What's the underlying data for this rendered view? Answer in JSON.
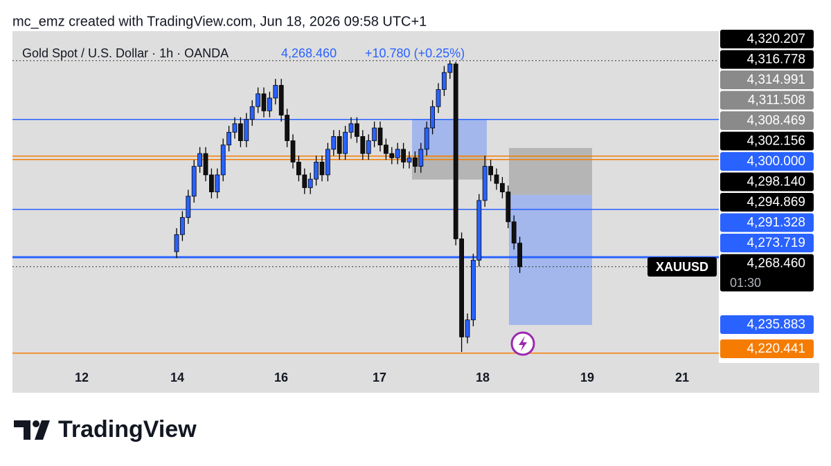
{
  "header": "mc_emz created with TradingView.com, Jun 18, 2026 09:58 UTC+1",
  "footer_logo": "TradingView",
  "chart_data": {
    "type": "candlestick",
    "title": "Gold Spot / U.S. Dollar · 1h · OANDA",
    "last_price": "4,268.460",
    "change": "+10.780 (+0.25%)",
    "symbol": "XAUUSD",
    "countdown": "01:30",
    "up_color": "#2962ff",
    "down_color": "#111111",
    "ylim": [
      4245.9,
      4323.7
    ],
    "x_labels": [
      "12",
      "14",
      "16",
      "17",
      "18",
      "19",
      "21"
    ],
    "open": [
      4272,
      4276,
      4280,
      4285,
      4292,
      4295,
      4290,
      4286,
      4290,
      4297,
      4300,
      4302,
      4298,
      4303,
      4306,
      4309,
      4305,
      4308,
      4311,
      4304,
      4298,
      4293,
      4290,
      4287,
      4289,
      4293,
      4290,
      4296,
      4299,
      4295,
      4300,
      4302,
      4299,
      4295,
      4298,
      4301,
      4297,
      4295,
      4294,
      4296,
      4293,
      4294,
      4292,
      4296,
      4301,
      4306,
      4310,
      4314,
      4316,
      4275,
      4252,
      4256,
      4270,
      4284,
      4292,
      4290,
      4288,
      4286,
      4279,
      4274
    ],
    "high": [
      4277.5,
      4281.5,
      4286.5,
      4293.5,
      4296.5,
      4296.5,
      4291.5,
      4291.5,
      4298.5,
      4301.5,
      4303.5,
      4303.5,
      4304.5,
      4307.5,
      4310.5,
      4310.5,
      4309.5,
      4312.5,
      4312.5,
      4305.5,
      4299.5,
      4294.5,
      4291.5,
      4290.5,
      4294.5,
      4294.5,
      4297.5,
      4300.5,
      4300.5,
      4301.5,
      4303.5,
      4303.5,
      4300.5,
      4299.5,
      4302.5,
      4302.5,
      4298.5,
      4296.5,
      4297.5,
      4297.5,
      4295.5,
      4295.5,
      4297.5,
      4302.5,
      4307.5,
      4311.5,
      4315.5,
      4316.8,
      4316.5,
      4276.5,
      4257.5,
      4271.5,
      4285.5,
      4294.5,
      4293.5,
      4291.5,
      4289.5,
      4287.5,
      4280.5,
      4275.5
    ],
    "low": [
      4270.5,
      4274.5,
      4278.5,
      4283.5,
      4290.5,
      4288.5,
      4284.5,
      4284.5,
      4288.5,
      4295.5,
      4298.5,
      4296.5,
      4296.5,
      4301.5,
      4304.5,
      4303.5,
      4303.5,
      4306.5,
      4302.5,
      4296.5,
      4291.5,
      4288.5,
      4285.5,
      4285.5,
      4287.5,
      4288.5,
      4288.5,
      4294.5,
      4293.5,
      4293.5,
      4298.5,
      4297.5,
      4293.5,
      4293.5,
      4296.5,
      4295.5,
      4293.5,
      4292.5,
      4292.5,
      4291.5,
      4291.5,
      4290.5,
      4290.5,
      4294.5,
      4299.5,
      4304.5,
      4308.5,
      4312.5,
      4273.5,
      4248.5,
      4250.5,
      4254.5,
      4268.5,
      4282.5,
      4288.5,
      4286.5,
      4284.5,
      4277.5,
      4272.5,
      4267
    ],
    "close": [
      4276,
      4280,
      4285,
      4292,
      4295,
      4290,
      4286,
      4290,
      4297,
      4300,
      4302,
      4298,
      4303,
      4306,
      4309,
      4305,
      4308,
      4311,
      4304,
      4298,
      4293,
      4290,
      4287,
      4289,
      4293,
      4290,
      4296,
      4299,
      4295,
      4300,
      4302,
      4299,
      4295,
      4298,
      4301,
      4297,
      4295,
      4294,
      4296,
      4293,
      4294,
      4292,
      4296,
      4301,
      4306,
      4310,
      4314,
      4316,
      4275,
      4252,
      4256,
      4270,
      4284,
      4292,
      4290,
      4288,
      4286,
      4279,
      4274,
      4268.46
    ],
    "levels": [
      {
        "value": 4303.0,
        "color": "#2962ff"
      },
      {
        "value": 4294.4,
        "color": "#f57c00"
      },
      {
        "value": 4293.6,
        "color": "#f57c00"
      },
      {
        "value": 4281.9,
        "color": "#2962ff"
      },
      {
        "value": 4270.7,
        "color": "#2962ff"
      },
      {
        "value": 4248.2,
        "color": "#f57c00"
      }
    ],
    "dotted_levels": [
      4316.778,
      4268.46
    ],
    "zones": [
      {
        "top": 4303.0,
        "bottom": 4294.6,
        "color": "#7b9cf5"
      },
      {
        "top": 4294.6,
        "bottom": 4288.9,
        "color": "#9a9a9a"
      },
      {
        "top": 4296.3,
        "bottom": 4285.3,
        "color": "#9a9a9a"
      },
      {
        "top": 4285.3,
        "bottom": 4254.8,
        "color": "#7b9cf5"
      }
    ],
    "price_labels": [
      {
        "label": "4,320.207",
        "bg": "#000000"
      },
      {
        "label": "4,316.778",
        "bg": "#000000"
      },
      {
        "label": "4,314.991",
        "bg": "#8a8a8a"
      },
      {
        "label": "4,311.508",
        "bg": "#8a8a8a"
      },
      {
        "label": "4,308.469",
        "bg": "#8a8a8a"
      },
      {
        "label": "4,302.156",
        "bg": "#000000"
      },
      {
        "label": "4,300.000",
        "bg": "#2962ff"
      },
      {
        "label": "4,298.140",
        "bg": "#000000"
      },
      {
        "label": "4,294.869",
        "bg": "#000000"
      },
      {
        "label": "4,291.328",
        "bg": "#2962ff"
      },
      {
        "label": "4,273.719",
        "bg": "#2962ff"
      },
      {
        "label": "4,268.460",
        "bg": "#000000"
      },
      {
        "label": "4,235.883",
        "bg": "#2962ff"
      },
      {
        "label": "4,220.441",
        "bg": "#f57c00"
      }
    ]
  }
}
